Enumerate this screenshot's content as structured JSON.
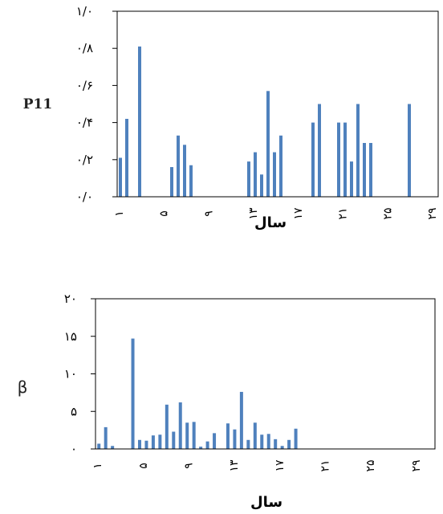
{
  "colors": {
    "bar": "#4F81BD",
    "axis": "#000000"
  },
  "chart_data": [
    {
      "type": "bar",
      "title": "",
      "xlabel": "سال",
      "ylabel": "P11",
      "ylim": [
        0,
        1.0
      ],
      "yticks": [
        0,
        0.2,
        0.4,
        0.6,
        0.8,
        1.0
      ],
      "ytick_labels": [
        "۰/۰",
        "۰/۲",
        "۰/۴",
        "۰/۶",
        "۰/۸",
        "۱/۰"
      ],
      "x": [
        1,
        2,
        3,
        4,
        5,
        6,
        7,
        8,
        9,
        10,
        11,
        12,
        13,
        14,
        15,
        16,
        17,
        18,
        19,
        20,
        21,
        22,
        23,
        24,
        25,
        26,
        27,
        28,
        29,
        30,
        31,
        32,
        33,
        34,
        35,
        36,
        37,
        38,
        39,
        40,
        41,
        42,
        43,
        44,
        45,
        46,
        47,
        48,
        49,
        50
      ],
      "values": [
        0.21,
        0.42,
        0,
        0.81,
        0,
        0,
        0,
        0,
        0.16,
        0.33,
        0.28,
        0.17,
        0,
        0,
        0,
        0,
        0,
        0,
        0,
        0,
        0.19,
        0.24,
        0.12,
        0.57,
        0.24,
        0.33,
        0,
        0,
        0,
        0,
        0.4,
        0.5,
        0,
        0,
        0.4,
        0.4,
        0.19,
        0.5,
        0.29,
        0.29,
        0,
        0,
        0,
        0,
        0,
        0.5,
        0,
        0,
        0,
        0
      ],
      "xticks": [
        1,
        5,
        9,
        13,
        17,
        21,
        25,
        29
      ],
      "xtick_labels": [
        "۱",
        "۵",
        "۹",
        "۱۳",
        "۱۷",
        "۲۱",
        "۲۵",
        "۲۹"
      ],
      "grid": false
    },
    {
      "type": "bar",
      "title": "",
      "xlabel": "سال",
      "ylabel": "β",
      "ylim": [
        0,
        20
      ],
      "yticks": [
        0,
        5,
        10,
        15,
        20
      ],
      "ytick_labels": [
        "۰",
        "۵",
        "۱۰",
        "۱۵",
        "۲۰"
      ],
      "x": [
        1,
        2,
        3,
        4,
        5,
        6,
        7,
        8,
        9,
        10,
        11,
        12,
        13,
        14,
        15,
        16,
        17,
        18,
        19,
        20,
        21,
        22,
        23,
        24,
        25,
        26,
        27,
        28,
        29,
        30,
        31,
        32,
        33,
        34,
        35,
        36,
        37,
        38,
        39,
        40,
        41,
        42,
        43,
        44,
        45,
        46,
        47,
        48,
        49,
        50
      ],
      "values": [
        0.7,
        2.9,
        0.4,
        0,
        0,
        14.7,
        1.2,
        1.1,
        1.8,
        1.9,
        5.9,
        2.3,
        6.2,
        3.5,
        3.6,
        0.3,
        1.0,
        2.1,
        0,
        3.4,
        2.6,
        7.6,
        1.2,
        3.5,
        1.9,
        2.0,
        1.3,
        0.4,
        1.2,
        2.7,
        0,
        0,
        0,
        0,
        0,
        0,
        0,
        0,
        0,
        0,
        0,
        0,
        0,
        0,
        0,
        0,
        0,
        0,
        0,
        0
      ],
      "xticks": [
        1,
        5,
        9,
        13,
        17,
        21,
        25,
        29
      ],
      "xtick_labels": [
        "۱",
        "۵",
        "۹",
        "۱۳",
        "۱۷",
        "۲۱",
        "۲۵",
        "۲۹"
      ],
      "grid": false
    }
  ]
}
